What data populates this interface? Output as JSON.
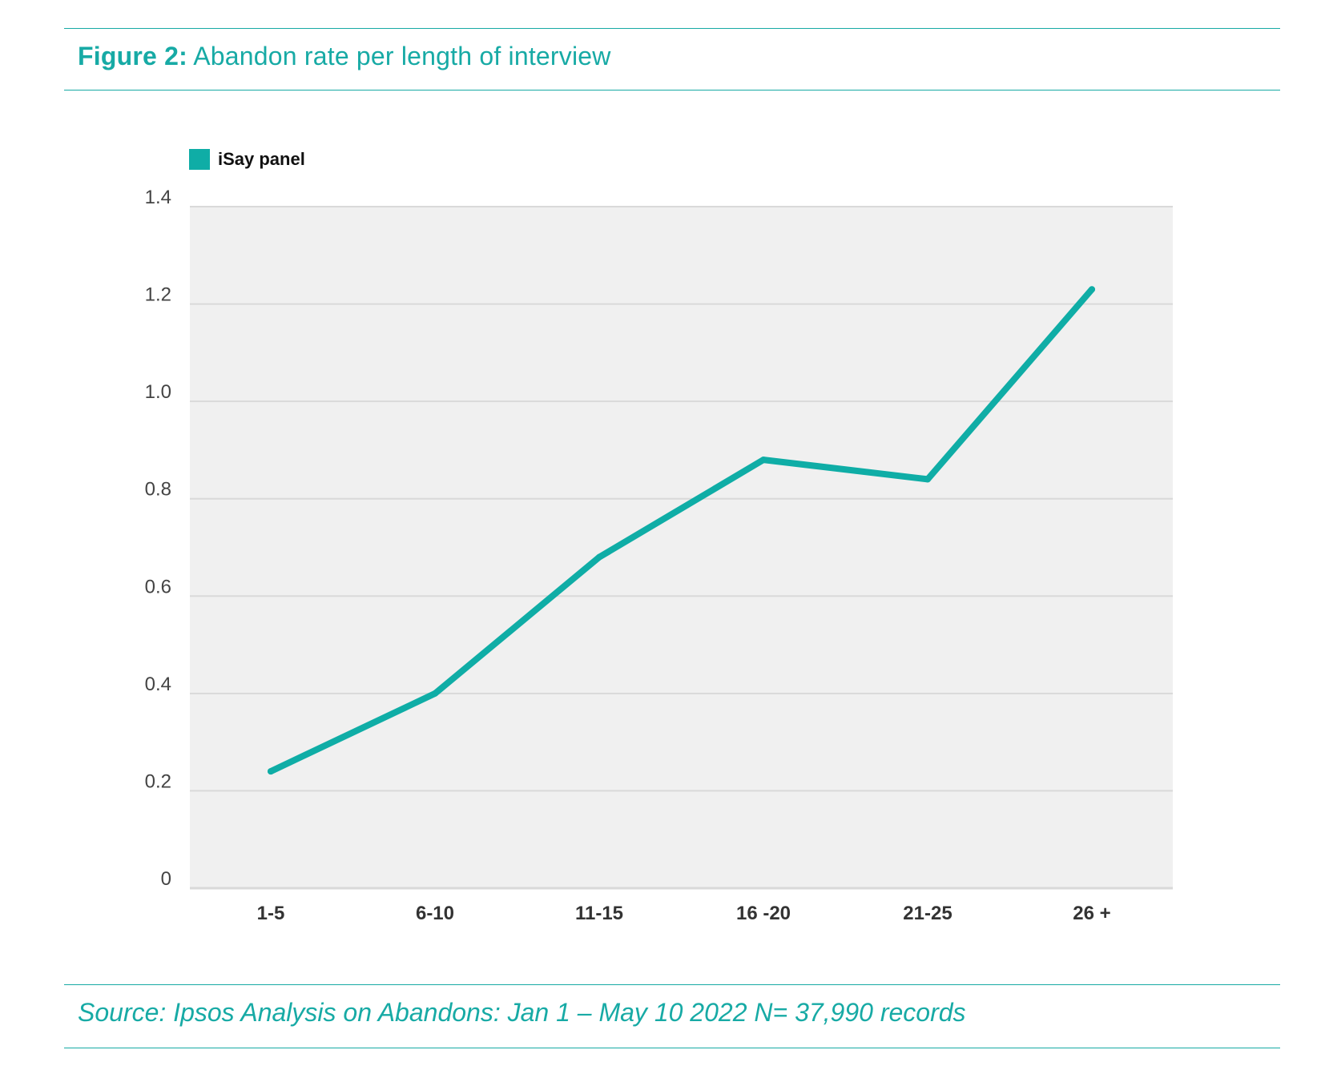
{
  "figure": {
    "label": "Figure 2:",
    "title": "Abandon rate per length of interview",
    "source": "Source: Ipsos Analysis on Abandons: Jan 1 – May 10 2022 N= 37,990 records"
  },
  "colors": {
    "accent": "#17aaa5",
    "line": "#0fada6",
    "plot_background": "#f0f0f0",
    "gridline": "#d9d9d9"
  },
  "chart_data": {
    "type": "line",
    "title": "Abandon rate per length of interview",
    "xlabel": "",
    "ylabel": "",
    "categories": [
      "1-5",
      "6-10",
      "11-15",
      "16 -20",
      "21-25",
      "26 +"
    ],
    "series": [
      {
        "name": "iSay panel",
        "values": [
          0.24,
          0.4,
          0.68,
          0.88,
          0.84,
          1.23
        ]
      }
    ],
    "ylim": [
      0,
      1.4
    ],
    "yticks": [
      "0",
      "0.2",
      "0.4",
      "0.6",
      "0.8",
      "1.0",
      "1.2",
      "1.4"
    ],
    "grid": true,
    "legend_position": "top-left"
  }
}
